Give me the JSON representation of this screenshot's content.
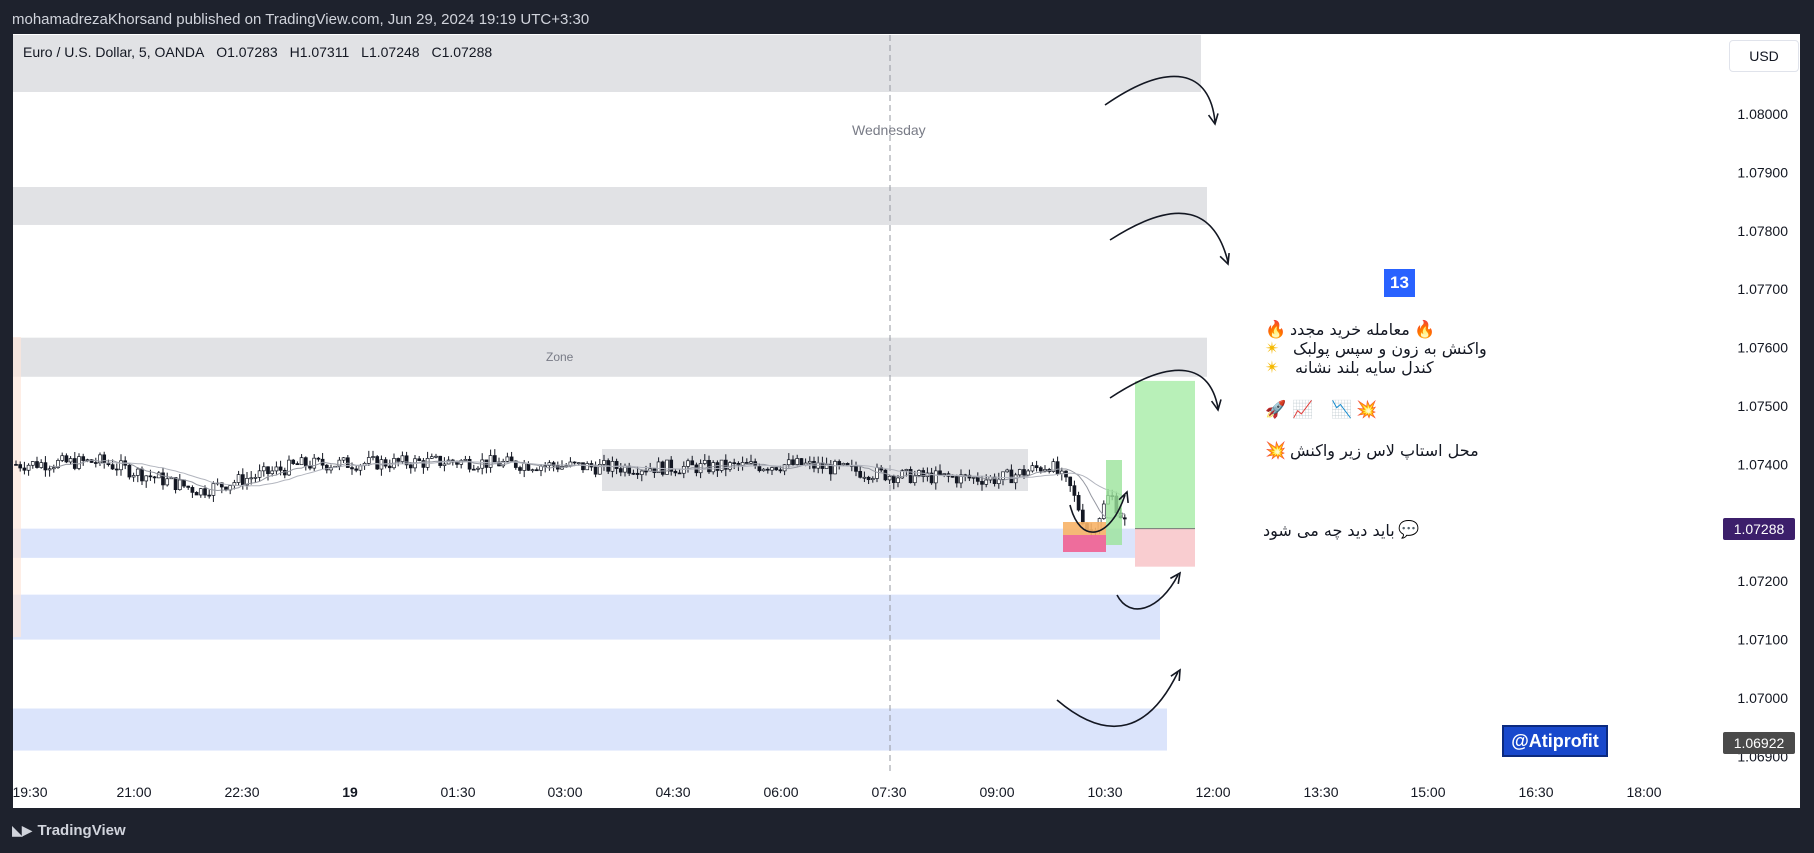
{
  "header": {
    "published": "mohamadrezaKhorsand published on TradingView.com, Jun 29, 2024 19:19 UTC+3:30"
  },
  "footer": {
    "brand": "TradingView",
    "logo_icon": "tradingview-logo-icon"
  },
  "currency_button": "USD",
  "symbol": {
    "name": "Euro / U.S. Dollar, 5, OANDA",
    "open": "O1.07283",
    "high": "H1.07311",
    "low": "L1.07248",
    "close": "C1.07288"
  },
  "annotations": {
    "wednesday": "Wednesday",
    "zone": "Zone",
    "badge": "13",
    "line1": "معامله خرید مجدد",
    "line2": "واکنش به زون و سپس پولبک",
    "line3": "کندل سایه بلند نشانه",
    "line4": "محل استاپ لاس زیر واکنش",
    "line5": "باید دید چه می شود",
    "watermark": "@Atiprofit",
    "icons": [
      "fire-icon",
      "sparkle-icon",
      "rocket-icon",
      "chart-up-icon",
      "chart-down-icon",
      "collision-icon",
      "speech-bubble-icon"
    ]
  },
  "price_labels": {
    "current": "1.07288",
    "current_color": "#3c1f6b",
    "marker": "1.06922",
    "marker_color": "#4a4a4a"
  },
  "chart_data": {
    "type": "candlestick",
    "title": "Euro / U.S. Dollar, 5, OANDA",
    "yaxis": {
      "ticks": [
        "1.08000",
        "1.07900",
        "1.07800",
        "1.07700",
        "1.07600",
        "1.07500",
        "1.07400",
        "1.07300",
        "1.07200",
        "1.07100",
        "1.07000",
        "1.06900"
      ],
      "range": [
        1.0687,
        1.0815
      ]
    },
    "xaxis": {
      "ticks": [
        "19:30",
        "21:00",
        "22:30",
        "19",
        "01:30",
        "03:00",
        "04:30",
        "06:00",
        "07:30",
        "09:00",
        "10:30",
        "12:00",
        "13:30",
        "15:00",
        "16:30",
        "18:00"
      ],
      "bold": [
        "19"
      ]
    },
    "zones": [
      {
        "color": "#e1e2e5",
        "from": 1.0801,
        "to": 1.0811
      },
      {
        "color": "#e1e2e5",
        "from": 1.0781,
        "to": 1.07875
      },
      {
        "color": "#e1e2e5",
        "from": 1.0755,
        "to": 1.07617,
        "label": "Zone"
      },
      {
        "color": "#dbe4fb",
        "from": 1.0724,
        "to": 1.0729
      },
      {
        "color": "#dbe4fb",
        "from": 1.071,
        "to": 1.07177
      },
      {
        "color": "#dbe4fb",
        "from": 1.0691,
        "to": 1.06982
      }
    ],
    "ohlc_last": {
      "open": 1.07283,
      "high": 1.07311,
      "low": 1.07248,
      "close": 1.07288
    },
    "trade": {
      "entry": 1.0729,
      "target": 1.07543,
      "stop": 1.0723
    }
  }
}
